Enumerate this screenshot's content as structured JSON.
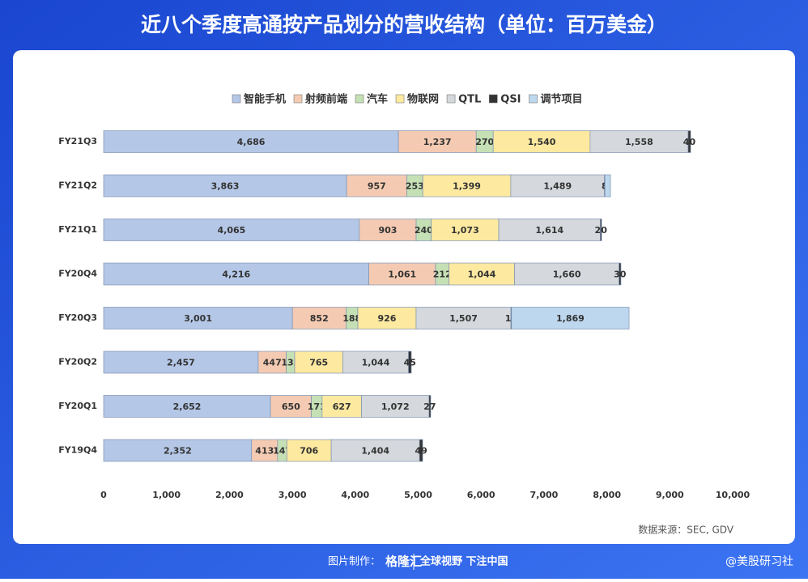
{
  "chart_data": {
    "type": "stacked_barh",
    "title": "近八个季度高通按产品划分的营收结构（单位：百万美金）",
    "categories": [
      "FY21Q3",
      "FY21Q2",
      "FY21Q1",
      "FY20Q4",
      "FY20Q3",
      "FY20Q2",
      "FY20Q1",
      "FY19Q4"
    ],
    "series": [
      {
        "name": "智能手机",
        "color": "#b4c7e7",
        "values": [
          4686,
          3863,
          4065,
          4216,
          3001,
          2457,
          2652,
          2352
        ],
        "value_labels": [
          "4,686",
          "3,863",
          "4,065",
          "4,216",
          "3,001",
          "2,457",
          "2,652",
          "2,352"
        ]
      },
      {
        "name": "射频前端",
        "color": "#f4cbb2",
        "values": [
          1237,
          957,
          903,
          1061,
          852,
          447,
          650,
          413
        ],
        "value_labels": [
          "1,237",
          "957",
          "903",
          "1,061",
          "852",
          "447",
          "650",
          "413"
        ]
      },
      {
        "name": "汽车",
        "color": "#c5e0b4",
        "values": [
          270,
          253,
          240,
          212,
          188,
          133,
          171,
          147
        ]
      },
      {
        "name": "物联网",
        "color": "#fde9a0",
        "values": [
          1540,
          1399,
          1073,
          1044,
          926,
          765,
          627,
          706
        ],
        "value_labels": [
          "1,540",
          "1,399",
          "1,073",
          "1,044",
          "926",
          "765",
          "627",
          "706"
        ]
      },
      {
        "name": "QTL",
        "color": "#d5d8dc",
        "values": [
          1558,
          1489,
          1614,
          1660,
          1507,
          1044,
          1072,
          1404
        ],
        "value_labels": [
          "1,558",
          "1,489",
          "1,614",
          "1,660",
          "1,507",
          "1,044",
          "1,072",
          "1,404"
        ]
      },
      {
        "name": "QSI",
        "color": "#333333",
        "values": [
          40,
          8,
          20,
          30,
          10,
          45,
          27,
          49
        ]
      },
      {
        "name": "调节项目",
        "color": "#bdd7ee",
        "values": [
          null,
          88,
          null,
          null,
          1869,
          null,
          null,
          null
        ],
        "value_labels": [
          null,
          null,
          null,
          null,
          "1,869",
          null,
          null,
          null
        ]
      }
    ],
    "xlim": [
      0,
      10000
    ],
    "xticks": [
      0,
      {
        "value": 1000,
        "label": "1,000"
      },
      {
        "value": 2000,
        "label": "2,000"
      },
      {
        "value": 3000,
        "label": "3,000"
      },
      {
        "value": 4000,
        "label": "4,000"
      },
      {
        "value": 5000,
        "label": "5,000"
      },
      {
        "value": 6000,
        "label": "6,000"
      },
      {
        "value": 7000,
        "label": "7,000"
      },
      {
        "value": 8000,
        "label": "8,000"
      },
      {
        "value": 9000,
        "label": "9,000"
      },
      {
        "value": 10000,
        "label": "10,000"
      }
    ],
    "legend": "top",
    "source": "数据来源：SEC, GDV"
  },
  "footer": {
    "maker": "图片制作：",
    "logo": "格隆汇",
    "slogan": "全球视野 下注中国",
    "credit": "@美股研习社"
  }
}
